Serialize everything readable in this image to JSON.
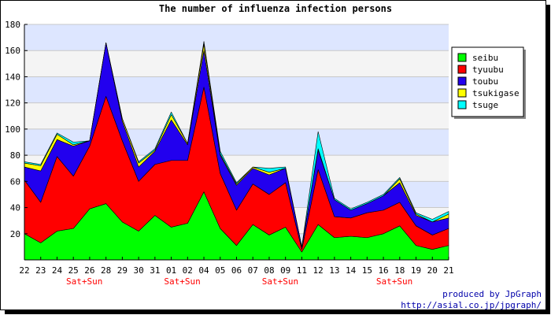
{
  "chart_data": {
    "type": "area",
    "stacked": true,
    "title": "The number of influenza infection persons",
    "xlabel": "",
    "ylabel": "",
    "ylim": [
      0,
      180
    ],
    "yticks": [
      20,
      40,
      60,
      80,
      100,
      120,
      140,
      160,
      180
    ],
    "grid": true,
    "legend_position": "right",
    "categories": [
      "22",
      "23",
      "24",
      "25",
      "26",
      "28",
      "29",
      "30",
      "31",
      "01",
      "02",
      "04",
      "05",
      "06",
      "07",
      "08",
      "09",
      "11",
      "12",
      "13",
      "14",
      "15",
      "16",
      "18",
      "19",
      "20",
      "21"
    ],
    "category_notes": [
      {
        "category": "25",
        "text": "Sat+Sun"
      },
      {
        "category": "01",
        "text": "Sat+Sun"
      },
      {
        "category": "08",
        "text": "Sat+Sun"
      },
      {
        "category": "16",
        "text": "Sat+Sun"
      }
    ],
    "series": [
      {
        "name": "seibu",
        "color": "#00ff00",
        "values": [
          20,
          13,
          22,
          24,
          39,
          43,
          29,
          22,
          34,
          25,
          28,
          52,
          24,
          11,
          27,
          19,
          25,
          6,
          27,
          17,
          18,
          17,
          20,
          26,
          11,
          8,
          11
        ]
      },
      {
        "name": "tyuubu",
        "color": "#ff0000",
        "values": [
          41,
          31,
          57,
          40,
          48,
          82,
          62,
          38,
          39,
          51,
          48,
          80,
          42,
          27,
          31,
          31,
          34,
          2,
          42,
          16,
          14,
          19,
          18,
          18,
          15,
          11,
          13
        ]
      },
      {
        "name": "toubu",
        "color": "#2200ee",
        "values": [
          10,
          24,
          13,
          23,
          4,
          41,
          15,
          11,
          10,
          31,
          12,
          28,
          14,
          19,
          12,
          15,
          11,
          2,
          15,
          13,
          6,
          7,
          11,
          15,
          8,
          10,
          8
        ]
      },
      {
        "name": "tsukigase",
        "color": "#ffff00",
        "values": [
          3,
          4,
          4,
          1,
          0,
          0,
          2,
          3,
          1,
          4,
          1,
          5,
          1,
          1,
          1,
          2,
          0,
          0,
          1,
          0,
          0,
          0,
          0,
          3,
          1,
          0,
          3
        ]
      },
      {
        "name": "tsuge",
        "color": "#00ffff",
        "values": [
          1,
          1,
          1,
          2,
          0,
          0,
          0,
          1,
          1,
          2,
          0,
          2,
          2,
          1,
          0,
          3,
          1,
          0,
          13,
          1,
          1,
          1,
          1,
          1,
          1,
          2,
          2
        ]
      }
    ]
  },
  "credits": {
    "line1": "produced by JpGraph",
    "line2": "http://asial.co.jp/jpgraph/"
  }
}
